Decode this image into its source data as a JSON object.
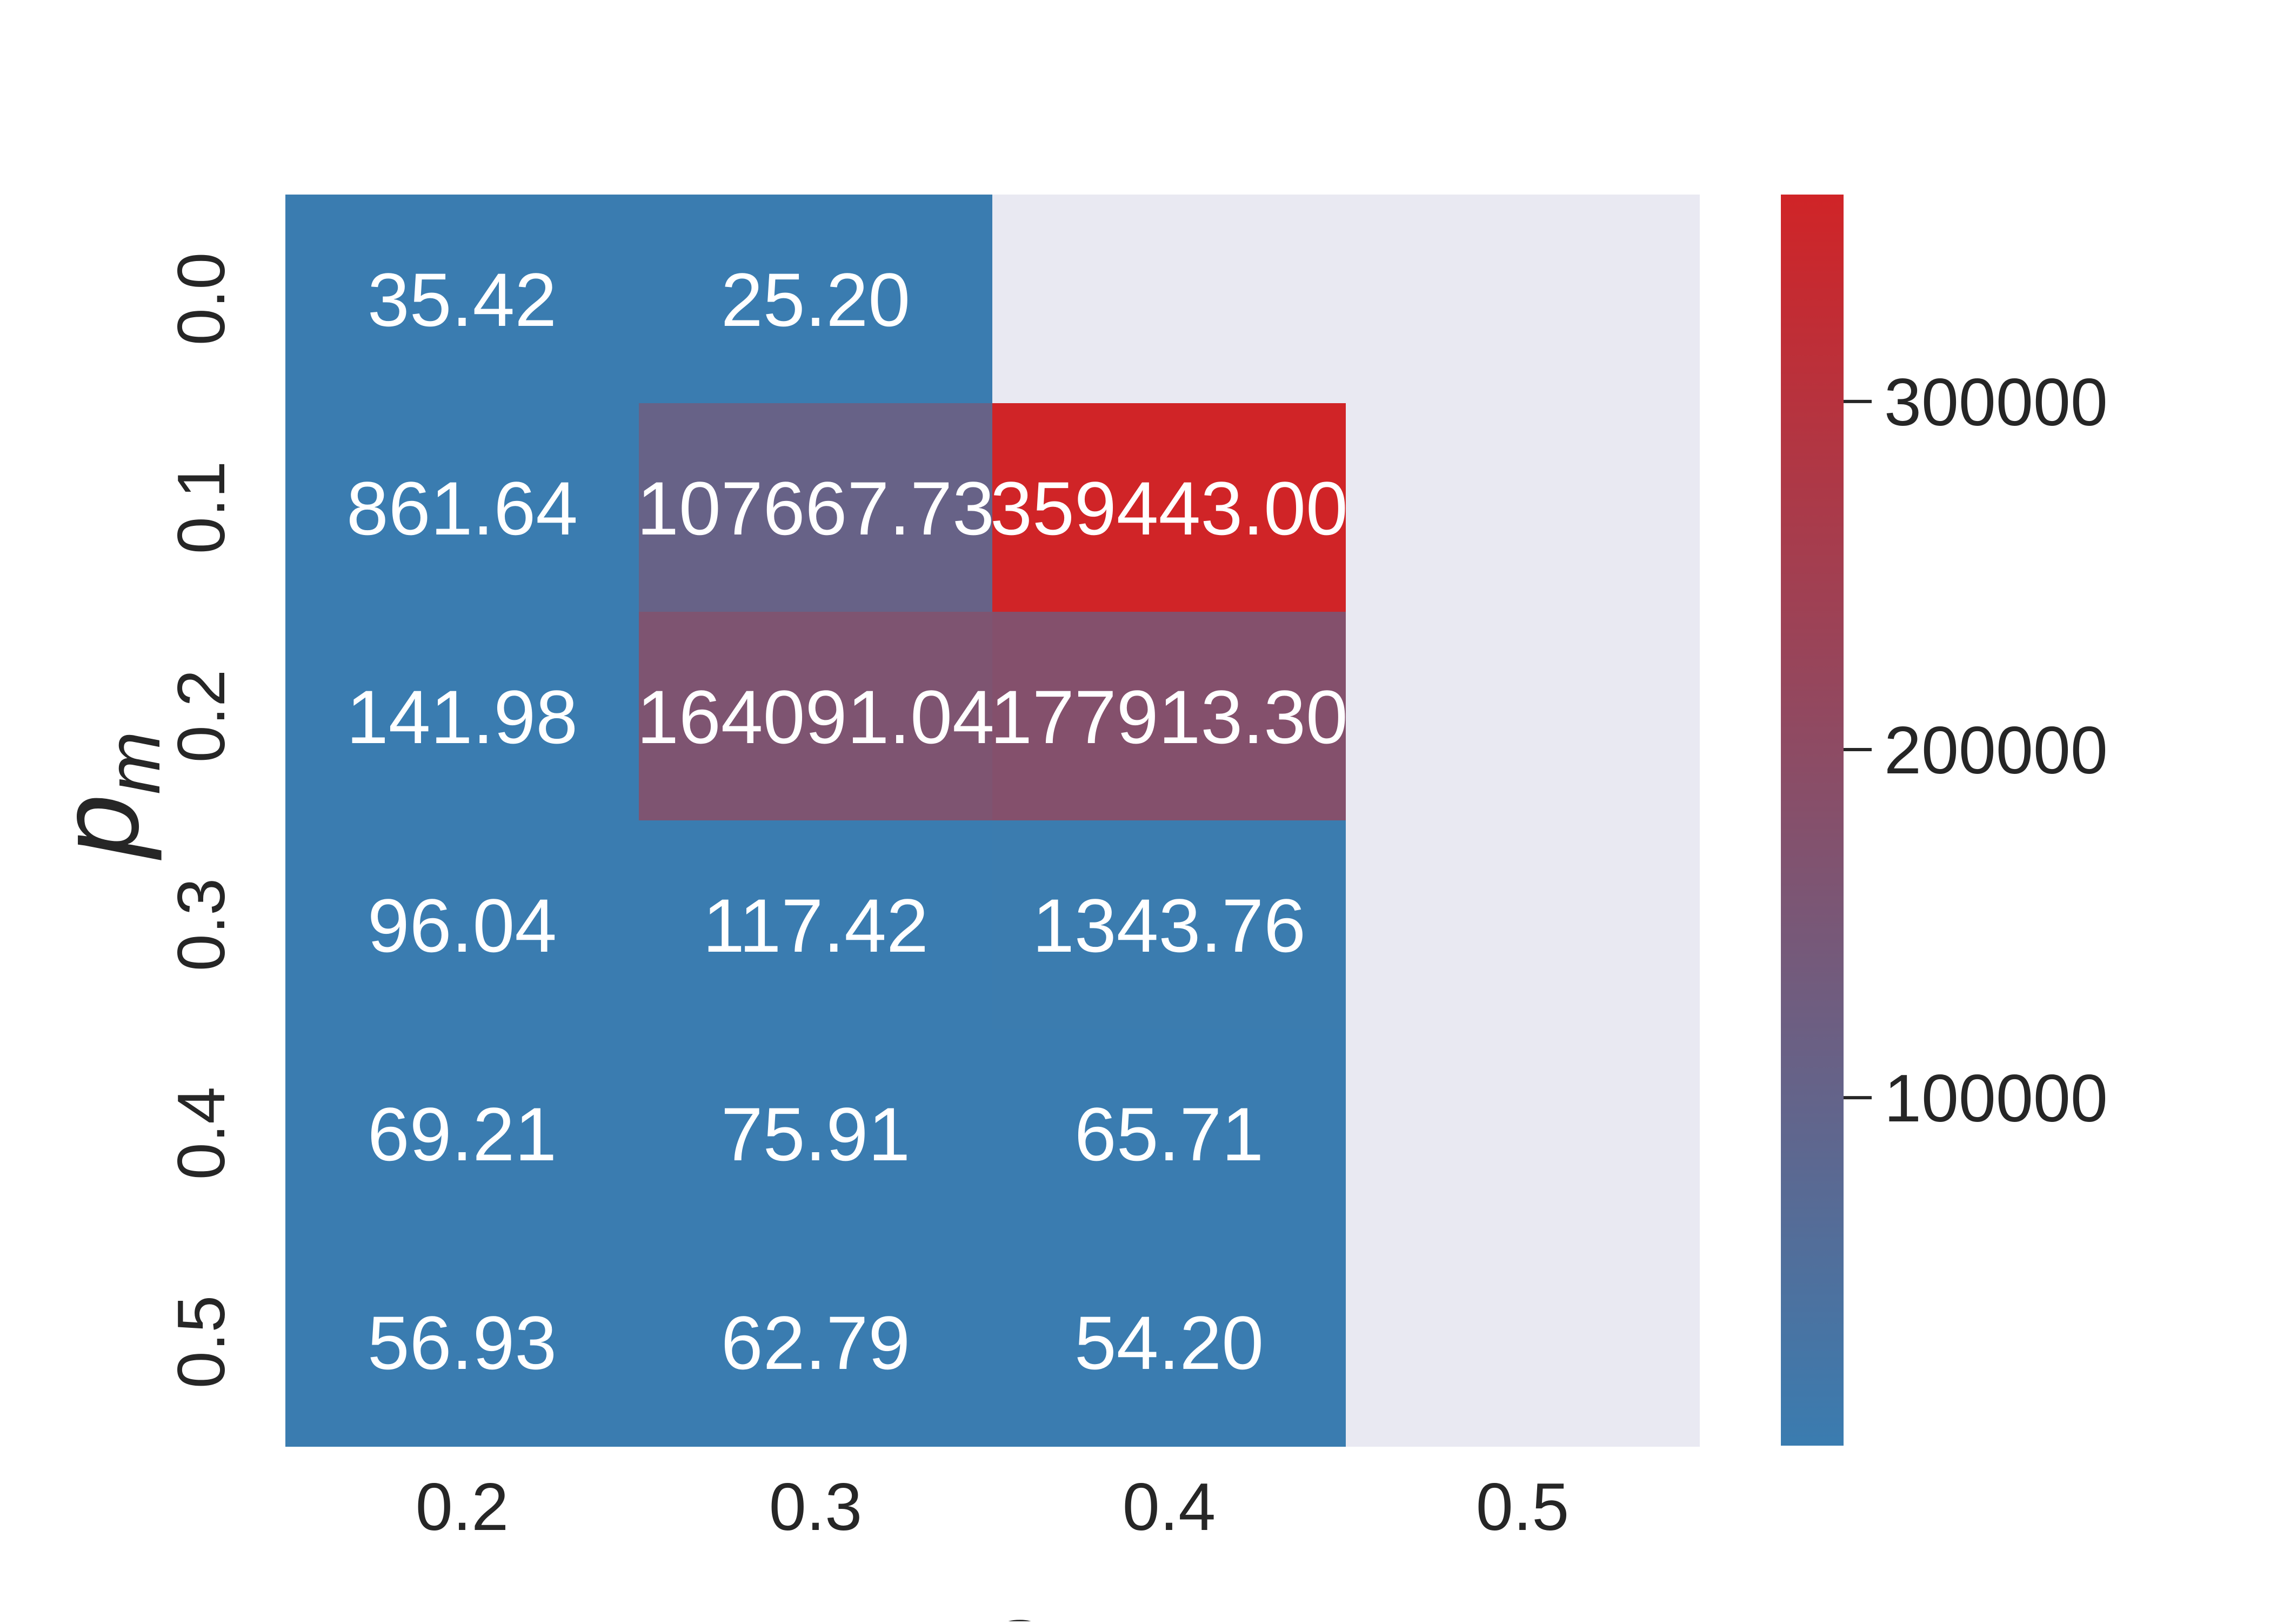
{
  "chart_data": {
    "type": "heatmap",
    "xlabel": "s",
    "ylabel": "p",
    "ylabel_subscript": "m",
    "x_categories": [
      "0.2",
      "0.3",
      "0.4",
      "0.5"
    ],
    "y_categories": [
      "0.0",
      "0.1",
      "0.2",
      "0.3",
      "0.4",
      "0.5"
    ],
    "values": [
      [
        35.42,
        25.2,
        null,
        null
      ],
      [
        861.64,
        107667.73,
        359443.0,
        null
      ],
      [
        141.98,
        164091.04,
        177913.3,
        null
      ],
      [
        96.04,
        117.42,
        1343.76,
        null
      ],
      [
        69.21,
        75.91,
        65.71,
        null
      ],
      [
        56.93,
        62.79,
        54.2,
        null
      ]
    ],
    "annotations": [
      [
        "35.42",
        "25.20",
        "",
        ""
      ],
      [
        "861.64",
        "107667.73",
        "359443.00",
        ""
      ],
      [
        "141.98",
        "164091.04",
        "177913.30",
        ""
      ],
      [
        "96.04",
        "117.42",
        "1343.76",
        ""
      ],
      [
        "69.21",
        "75.91",
        "65.71",
        ""
      ],
      [
        "56.93",
        "62.79",
        "54.20",
        ""
      ]
    ],
    "colorbar": {
      "vmin": 25.2,
      "vmax": 359443.0,
      "ticks": [
        100000,
        200000,
        300000
      ],
      "tick_labels": [
        "100000",
        "200000",
        "300000"
      ],
      "color_low": "#3a7cb0",
      "color_high": "#d02427"
    },
    "missing_color": "#e9e9f2",
    "annotation_color": "#ffffff",
    "tick_color": "#262626"
  }
}
